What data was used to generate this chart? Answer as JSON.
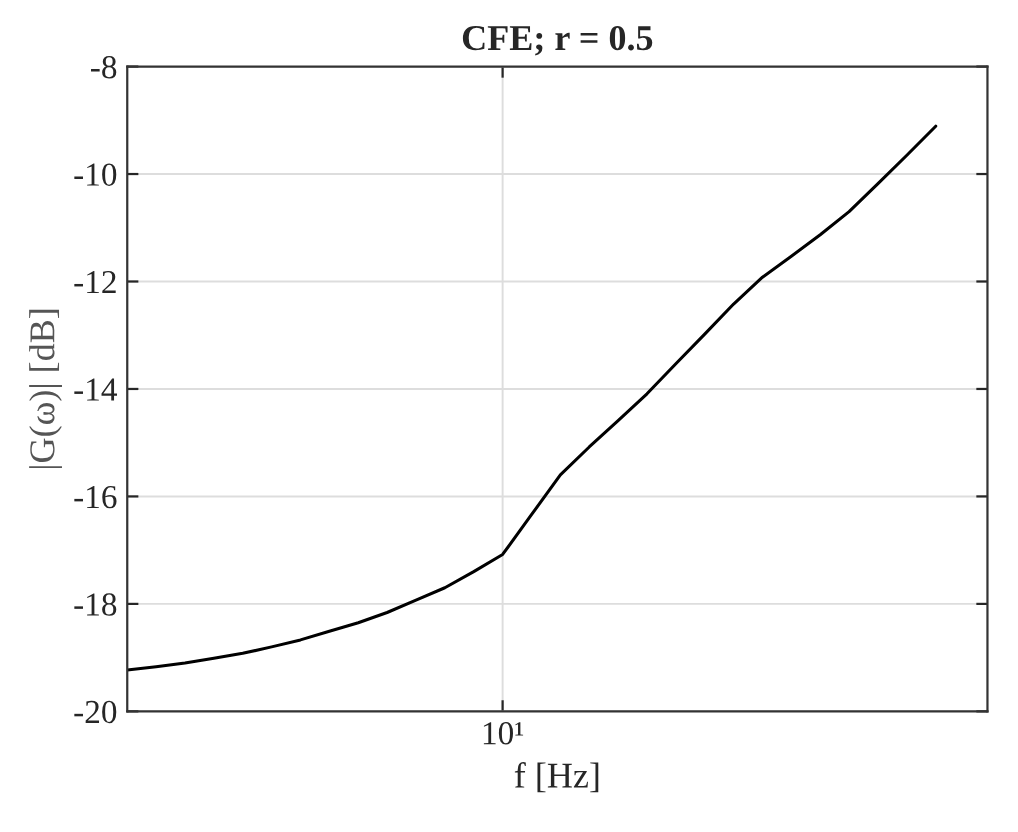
{
  "chart_data": {
    "type": "line",
    "title": "CFE; r = 0.5",
    "xlabel": "f [Hz]",
    "ylabel": "|G(ω)| [dB]",
    "grid": true,
    "marker": "none",
    "line_style": "solid",
    "categories": [
      null,
      null,
      null,
      null,
      null,
      null,
      null,
      null,
      null,
      null,
      null,
      null,
      null,
      "10¹",
      null,
      null,
      null,
      null,
      null,
      null,
      null,
      null,
      null,
      null,
      null,
      null,
      null,
      null,
      null
    ],
    "ylim": [
      -20,
      -8
    ],
    "yticks": [
      {
        "value": -20,
        "label": "-20"
      },
      {
        "value": -18,
        "label": "-18"
      },
      {
        "value": -16,
        "label": "-16"
      },
      {
        "value": -14,
        "label": "-14"
      },
      {
        "value": -12,
        "label": "-12"
      },
      {
        "value": -10,
        "label": "-10"
      },
      {
        "value": -8,
        "label": "-8"
      }
    ],
    "series": [
      {
        "color": "#000000",
        "values": [
          -19.23,
          -19.17,
          -19.1,
          -19.01,
          -18.92,
          -18.8,
          -18.67,
          -18.51,
          -18.35,
          -18.16,
          -17.93,
          -17.7,
          -17.4,
          -17.08,
          -16.34,
          -15.6,
          -15.08,
          -14.59,
          -14.09,
          -13.53,
          -12.98,
          -12.42,
          -11.92,
          -11.53,
          -11.13,
          -10.7,
          -10.18,
          -9.65,
          -9.11
        ]
      }
    ]
  }
}
